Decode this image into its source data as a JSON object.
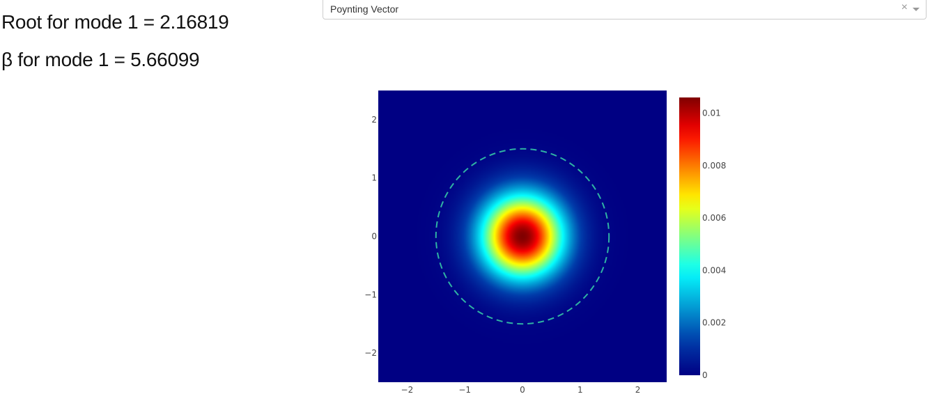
{
  "results": {
    "root_text": "Root for mode 1 = 2.16819",
    "beta_text": "β for mode 1 = 5.66099"
  },
  "dropdown": {
    "selected": "Poynting Vector",
    "clear_symbol": "×"
  },
  "chart_data": {
    "type": "heatmap",
    "title": "",
    "xlabel": "",
    "ylabel": "",
    "xlim": [
      -2.5,
      2.5
    ],
    "ylim": [
      -2.5,
      2.5
    ],
    "x_ticks": [
      -2,
      -1,
      0,
      1,
      2
    ],
    "y_ticks": [
      -2,
      -1,
      0,
      1,
      2
    ],
    "field": {
      "shape": "radial gaussian",
      "center": [
        0,
        0
      ],
      "peak": 0.0106,
      "sigma": 0.5
    },
    "core_boundary": {
      "shape": "circle",
      "center": [
        0,
        0
      ],
      "radius": 1.5,
      "style": "dashed",
      "color": "#2fb3a3"
    },
    "colorbar": {
      "colorscale": "Jet",
      "range": [
        0,
        0.0106
      ],
      "ticks": [
        0,
        0.002,
        0.004,
        0.006,
        0.008,
        0.01
      ],
      "tick_labels": [
        "0",
        "0.002",
        "0.004",
        "0.006",
        "0.008",
        "0.01"
      ]
    },
    "grid": false,
    "legend": "none"
  }
}
